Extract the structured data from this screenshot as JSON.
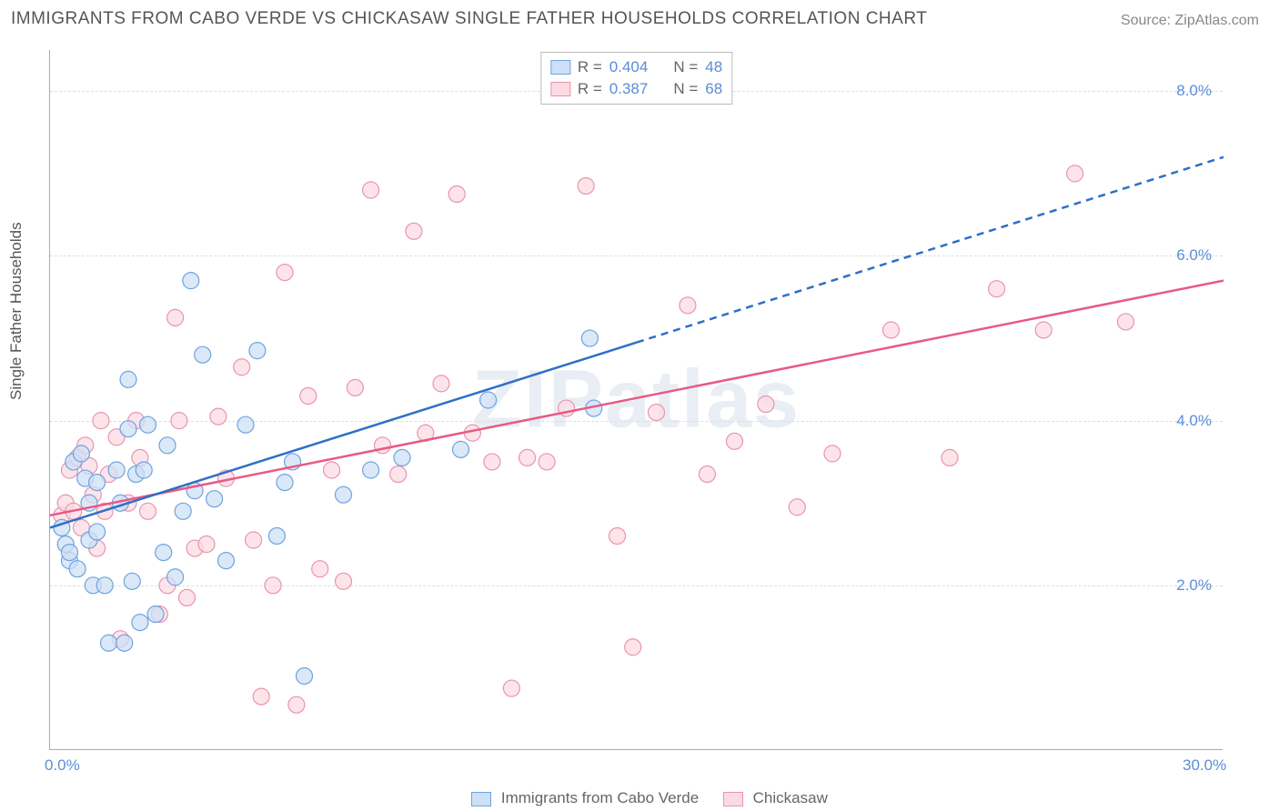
{
  "meta": {
    "title": "IMMIGRANTS FROM CABO VERDE VS CHICKASAW SINGLE FATHER HOUSEHOLDS CORRELATION CHART",
    "source_label": "Source: ",
    "source_value": "ZipAtlas.com",
    "watermark": "ZIPatlas"
  },
  "chart": {
    "type": "scatter",
    "ylabel": "Single Father Households",
    "xlim": [
      0,
      30
    ],
    "ylim": [
      0,
      8.5
    ],
    "xtick_labels": [
      "0.0%",
      "30.0%"
    ],
    "xtick_values": [
      0,
      30
    ],
    "ytick_labels": [
      "2.0%",
      "4.0%",
      "6.0%",
      "8.0%"
    ],
    "ytick_values": [
      2,
      4,
      6,
      8
    ],
    "grid_color": "#dddddd",
    "axis_color": "#aaaaaa",
    "background_color": "#ffffff",
    "tick_font_color": "#5b8dd6",
    "label_font_color": "#555555",
    "title_fontsize": 19,
    "label_fontsize": 17,
    "marker_radius": 9,
    "marker_stroke_width": 1.2,
    "trend_line_width": 2.5,
    "watermark_color": "#e9eef5",
    "watermark_fontsize": 90
  },
  "series_a": {
    "label": "Immigrants from Cabo Verde",
    "fill": "#cde0f5",
    "stroke": "#6fa3df",
    "line_color": "#2f6fc6",
    "R_label": "R = ",
    "R_value": "0.404",
    "N_label": "N = ",
    "N_value": "48",
    "trend_solid": {
      "x1": 0,
      "y1": 2.7,
      "x2": 15,
      "y2": 4.95
    },
    "trend_dashed": {
      "x1": 15,
      "y1": 4.95,
      "x2": 30,
      "y2": 7.2
    },
    "points": [
      [
        0.3,
        2.7
      ],
      [
        0.4,
        2.5
      ],
      [
        0.5,
        2.3
      ],
      [
        0.5,
        2.4
      ],
      [
        0.6,
        3.5
      ],
      [
        0.7,
        2.2
      ],
      [
        0.8,
        3.6
      ],
      [
        0.9,
        3.3
      ],
      [
        1.0,
        3.0
      ],
      [
        1.0,
        2.55
      ],
      [
        1.1,
        2.0
      ],
      [
        1.2,
        3.25
      ],
      [
        1.2,
        2.65
      ],
      [
        1.4,
        2.0
      ],
      [
        1.5,
        1.3
      ],
      [
        1.7,
        3.4
      ],
      [
        1.8,
        3.0
      ],
      [
        1.9,
        1.3
      ],
      [
        2.0,
        4.5
      ],
      [
        2.0,
        3.9
      ],
      [
        2.1,
        2.05
      ],
      [
        2.2,
        3.35
      ],
      [
        2.3,
        1.55
      ],
      [
        2.4,
        3.4
      ],
      [
        2.5,
        3.95
      ],
      [
        2.7,
        1.65
      ],
      [
        2.9,
        2.4
      ],
      [
        3.0,
        3.7
      ],
      [
        3.2,
        2.1
      ],
      [
        3.4,
        2.9
      ],
      [
        3.6,
        5.7
      ],
      [
        3.7,
        3.15
      ],
      [
        3.9,
        4.8
      ],
      [
        4.2,
        3.05
      ],
      [
        4.5,
        2.3
      ],
      [
        5.0,
        3.95
      ],
      [
        5.3,
        4.85
      ],
      [
        5.8,
        2.6
      ],
      [
        6.0,
        3.25
      ],
      [
        6.2,
        3.5
      ],
      [
        6.5,
        0.9
      ],
      [
        7.5,
        3.1
      ],
      [
        8.2,
        3.4
      ],
      [
        9.0,
        3.55
      ],
      [
        10.5,
        3.65
      ],
      [
        11.2,
        4.25
      ],
      [
        13.8,
        5.0
      ],
      [
        13.9,
        4.15
      ]
    ]
  },
  "series_b": {
    "label": "Chickasaw",
    "fill": "#fbdbe3",
    "stroke": "#ea94ad",
    "line_color": "#e85a85",
    "R_label": "R = ",
    "R_value": "0.387",
    "N_label": "N = ",
    "N_value": "68",
    "trend_solid": {
      "x1": 0,
      "y1": 2.85,
      "x2": 30,
      "y2": 5.7
    },
    "points": [
      [
        0.3,
        2.85
      ],
      [
        0.4,
        3.0
      ],
      [
        0.5,
        3.4
      ],
      [
        0.6,
        2.9
      ],
      [
        0.7,
        3.55
      ],
      [
        0.8,
        2.7
      ],
      [
        0.9,
        3.7
      ],
      [
        1.0,
        3.45
      ],
      [
        1.1,
        3.1
      ],
      [
        1.2,
        2.45
      ],
      [
        1.3,
        4.0
      ],
      [
        1.4,
        2.9
      ],
      [
        1.5,
        3.35
      ],
      [
        1.7,
        3.8
      ],
      [
        1.8,
        1.35
      ],
      [
        2.0,
        3.0
      ],
      [
        2.2,
        4.0
      ],
      [
        2.3,
        3.55
      ],
      [
        2.5,
        2.9
      ],
      [
        2.8,
        1.65
      ],
      [
        3.0,
        2.0
      ],
      [
        3.2,
        5.25
      ],
      [
        3.3,
        4.0
      ],
      [
        3.5,
        1.85
      ],
      [
        3.7,
        2.45
      ],
      [
        4.0,
        2.5
      ],
      [
        4.3,
        4.05
      ],
      [
        4.5,
        3.3
      ],
      [
        4.9,
        4.65
      ],
      [
        5.2,
        2.55
      ],
      [
        5.4,
        0.65
      ],
      [
        5.7,
        2.0
      ],
      [
        6.0,
        5.8
      ],
      [
        6.3,
        0.55
      ],
      [
        6.6,
        4.3
      ],
      [
        6.9,
        2.2
      ],
      [
        7.2,
        3.4
      ],
      [
        7.5,
        2.05
      ],
      [
        7.8,
        4.4
      ],
      [
        8.2,
        6.8
      ],
      [
        8.5,
        3.7
      ],
      [
        8.9,
        3.35
      ],
      [
        9.3,
        6.3
      ],
      [
        9.6,
        3.85
      ],
      [
        10.0,
        4.45
      ],
      [
        10.4,
        6.75
      ],
      [
        10.8,
        3.85
      ],
      [
        11.3,
        3.5
      ],
      [
        11.8,
        0.75
      ],
      [
        12.2,
        3.55
      ],
      [
        12.7,
        3.5
      ],
      [
        13.2,
        4.15
      ],
      [
        13.7,
        6.85
      ],
      [
        14.5,
        2.6
      ],
      [
        14.9,
        1.25
      ],
      [
        15.5,
        4.1
      ],
      [
        16.3,
        5.4
      ],
      [
        16.8,
        3.35
      ],
      [
        17.5,
        3.75
      ],
      [
        18.3,
        4.2
      ],
      [
        19.1,
        2.95
      ],
      [
        20.0,
        3.6
      ],
      [
        21.5,
        5.1
      ],
      [
        23.0,
        3.55
      ],
      [
        24.2,
        5.6
      ],
      [
        25.4,
        5.1
      ],
      [
        26.2,
        7.0
      ],
      [
        27.5,
        5.2
      ]
    ]
  },
  "legend": {
    "top_series_a": "Immigrants from Cabo Verde",
    "top_series_b": "Chickasaw"
  }
}
